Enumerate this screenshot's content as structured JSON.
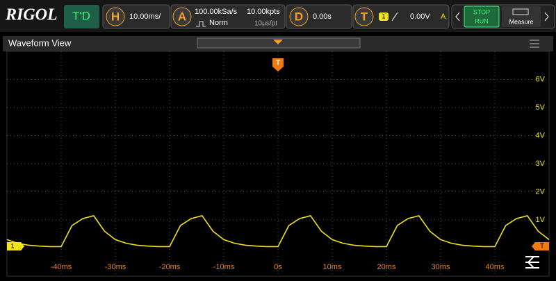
{
  "header": {
    "logo": "RIGOL",
    "status": "T'D",
    "horizontal": {
      "badge": "H",
      "value": "10.00ms/"
    },
    "acquire": {
      "badge": "A",
      "rate": "100.00kSa/s",
      "depth": "10.00kpts",
      "mode": "Norm",
      "resolution": "10μs/pt"
    },
    "delay": {
      "badge": "D",
      "value": "0.00s"
    },
    "trigger": {
      "badge": "T",
      "channel": "1",
      "level": "0.00V",
      "coupling": "A"
    },
    "run": {
      "stop": "STOP",
      "run": "RUN"
    },
    "measure": "Measure"
  },
  "window": {
    "title": "Waveform View",
    "trigger_marker": "T",
    "channel_marker": "1",
    "level_marker": "T"
  },
  "chart_data": {
    "type": "line",
    "color": "#f2e21a",
    "x": [
      -50,
      -48,
      -46,
      -44,
      -42,
      -40,
      -38,
      -36,
      -34,
      -32,
      -30,
      -28,
      -26,
      -24,
      -22,
      -20,
      -18,
      -16,
      -14,
      -12,
      -10,
      -8,
      -6,
      -4,
      -2,
      0,
      2,
      4,
      6,
      8,
      10,
      12,
      14,
      16,
      18,
      20,
      22,
      24,
      26,
      28,
      30,
      32,
      34,
      36,
      38,
      40,
      42,
      44,
      46,
      48,
      50
    ],
    "values": [
      0.3,
      0.17,
      0.1,
      0.07,
      0.05,
      0.05,
      0.8,
      1.05,
      1.15,
      0.6,
      0.3,
      0.17,
      0.1,
      0.07,
      0.05,
      0.05,
      0.8,
      1.05,
      1.15,
      0.6,
      0.3,
      0.17,
      0.1,
      0.07,
      0.05,
      0.05,
      0.8,
      1.05,
      1.15,
      0.6,
      0.3,
      0.17,
      0.1,
      0.07,
      0.05,
      0.05,
      0.8,
      1.05,
      1.15,
      0.6,
      0.3,
      0.17,
      0.1,
      0.07,
      0.05,
      0.05,
      0.8,
      1.05,
      1.15,
      0.6,
      0.3
    ],
    "xlim": [
      -50,
      50
    ],
    "ylim": [
      -1,
      7
    ],
    "xticks": [
      {
        "value": -40,
        "label": "-40ms"
      },
      {
        "value": -30,
        "label": "-30ms"
      },
      {
        "value": -20,
        "label": "-20ms"
      },
      {
        "value": -10,
        "label": "-10ms"
      },
      {
        "value": 0,
        "label": "0s"
      },
      {
        "value": 10,
        "label": "10ms"
      },
      {
        "value": 20,
        "label": "20ms"
      },
      {
        "value": 30,
        "label": "30ms"
      },
      {
        "value": 40,
        "label": "40ms"
      }
    ],
    "yticks": [
      {
        "value": 1,
        "label": "1V"
      },
      {
        "value": 2,
        "label": "2V"
      },
      {
        "value": 3,
        "label": "3V"
      },
      {
        "value": 4,
        "label": "4V"
      },
      {
        "value": 5,
        "label": "5V"
      },
      {
        "value": 6,
        "label": "6V"
      }
    ],
    "grid": true
  }
}
